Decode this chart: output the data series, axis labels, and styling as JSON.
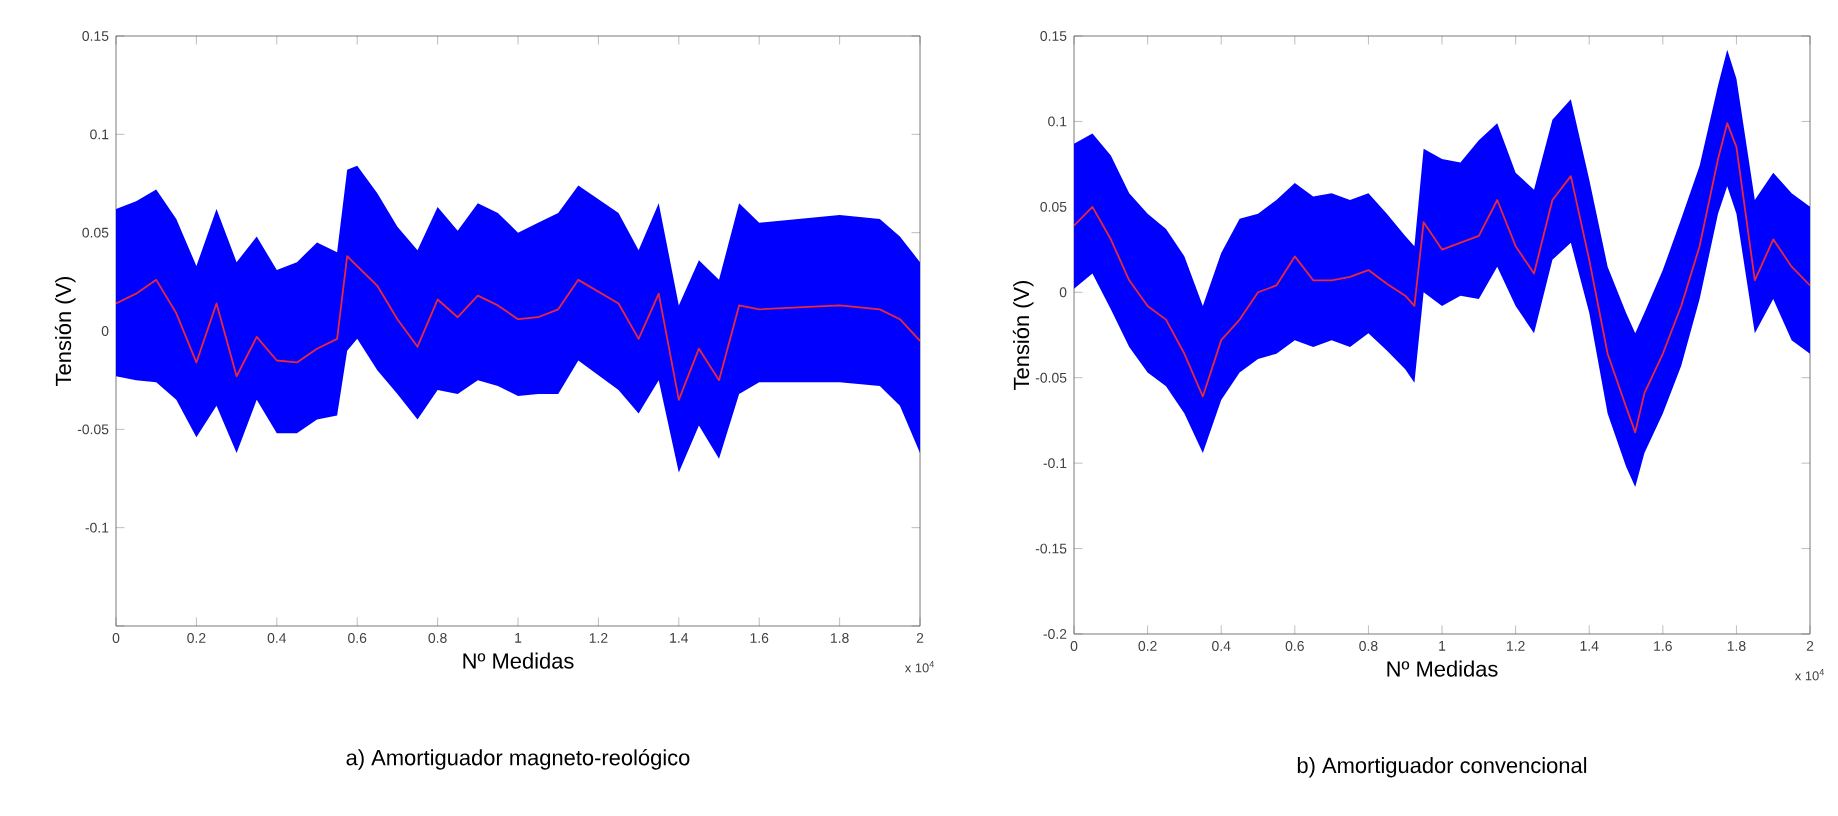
{
  "chart_data": [
    {
      "type": "line",
      "title": "a)  Amortiguador magneto-reológico",
      "xlabel": "Nº Medidas",
      "ylabel": "Tensión (V)",
      "annotations": [
        "x 10$^{4}$"
      ],
      "x": [
        0,
        0.05,
        0.1,
        0.15,
        0.2,
        0.25,
        0.3,
        0.35,
        0.4,
        0.45,
        0.5,
        0.55,
        0.575,
        0.6,
        0.65,
        0.7,
        0.75,
        0.8,
        0.85,
        0.9,
        0.95,
        1.0,
        1.05,
        1.1,
        1.15,
        1.25,
        1.3,
        1.35,
        1.4,
        1.45,
        1.5,
        1.55,
        1.6,
        1.8,
        1.9,
        1.95,
        2.0
      ],
      "xlim": [
        0,
        2
      ],
      "xticks": [
        0,
        0.2,
        0.4,
        0.6,
        0.8,
        1,
        1.2,
        1.4,
        1.6,
        1.8,
        2
      ],
      "ylim": [
        -0.15,
        0.15
      ],
      "yticks": [
        {
          "value": -0.15,
          "label": null
        },
        -0.1,
        -0.05,
        0,
        0.05,
        0.1,
        0.15
      ],
      "series": [
        {
          "color": "#e8283c",
          "colors": [
            "#0000ff",
            "#0000ff",
            "#0000ff",
            "#0000ff",
            "#0000ff",
            "#0000ff",
            "#0000ff",
            "#0000ff",
            "#0000ff",
            "#0000ff",
            "#0000ff",
            "#0000ff",
            "#0000ff",
            "#0000ff",
            "#0000ff",
            "#0000ff",
            "#0000ff",
            "#0000ff",
            "#0000ff",
            "#0000ff",
            "#0000ff",
            "#0000ff",
            "#0000ff",
            "#0000ff",
            "#0000ff",
            "#0000ff",
            "#0000ff",
            "#0000ff",
            "#0000ff",
            "#0000ff",
            "#0000ff",
            "#0000ff",
            "#0000ff",
            "#0000ff",
            "#0000ff",
            "#0000ff",
            "#0000ff"
          ],
          "values": [
            0.014,
            0.019,
            0.026,
            0.009,
            -0.016,
            0.014,
            -0.023,
            -0.003,
            -0.015,
            -0.016,
            -0.009,
            -0.004,
            0.038,
            0.033,
            0.023,
            0.006,
            -0.008,
            0.016,
            0.007,
            0.018,
            0.013,
            0.006,
            0.007,
            0.011,
            0.026,
            0.014,
            -0.004,
            0.019,
            -0.035,
            -0.009,
            -0.025,
            0.013,
            0.011,
            0.013,
            0.011,
            0.006,
            -0.005
          ],
          "upper": [
            0.062,
            0.066,
            0.072,
            0.057,
            0.033,
            0.062,
            0.035,
            0.048,
            0.031,
            0.035,
            0.045,
            0.04,
            0.082,
            0.084,
            0.07,
            0.053,
            0.041,
            0.063,
            0.051,
            0.065,
            0.06,
            0.05,
            0.055,
            0.06,
            0.074,
            0.06,
            0.041,
            0.065,
            0.013,
            0.036,
            0.026,
            0.065,
            0.055,
            0.059,
            0.057,
            0.048,
            0.035
          ],
          "lower": [
            -0.023,
            -0.025,
            -0.026,
            -0.035,
            -0.054,
            -0.038,
            -0.062,
            -0.035,
            -0.052,
            -0.052,
            -0.045,
            -0.043,
            -0.01,
            -0.004,
            -0.02,
            -0.032,
            -0.045,
            -0.03,
            -0.032,
            -0.025,
            -0.028,
            -0.033,
            -0.032,
            -0.032,
            -0.015,
            -0.03,
            -0.042,
            -0.025,
            -0.072,
            -0.048,
            -0.065,
            -0.032,
            -0.026,
            -0.026,
            -0.028,
            -0.038,
            -0.062
          ]
        }
      ]
    },
    {
      "type": "line",
      "title": "b)  Amortiguador convencional",
      "xlabel": "Nº Medidas",
      "ylabel": "Tensión (V)",
      "annotations": [
        "x 10$^{4}$"
      ],
      "x": [
        0,
        0.05,
        0.1,
        0.15,
        0.2,
        0.25,
        0.3,
        0.35,
        0.4,
        0.45,
        0.5,
        0.55,
        0.6,
        0.65,
        0.7,
        0.75,
        0.8,
        0.85,
        0.9,
        0.925,
        0.95,
        1.0,
        1.05,
        1.1,
        1.15,
        1.2,
        1.25,
        1.3,
        1.35,
        1.4,
        1.45,
        1.5,
        1.525,
        1.55,
        1.6,
        1.65,
        1.7,
        1.75,
        1.775,
        1.8,
        1.85,
        1.9,
        1.95,
        2.0
      ],
      "xlim": [
        0,
        2
      ],
      "xticks": [
        0,
        0.2,
        0.4,
        0.6,
        0.8,
        1,
        1.2,
        1.4,
        1.6,
        1.8,
        2
      ],
      "ylim": [
        -0.2,
        0.15
      ],
      "yticks": [
        -0.2,
        -0.15,
        -0.1,
        -0.05,
        0,
        0.05,
        0.1,
        0.15
      ],
      "series": [
        {
          "color": "#e8283c",
          "colors": [
            "#0000ff",
            "#0000ff",
            "#0000ff",
            "#0000ff",
            "#0000ff",
            "#0000ff",
            "#0000ff",
            "#0000ff",
            "#0000ff",
            "#0000ff",
            "#0000ff",
            "#0000ff",
            "#0000ff",
            "#0000ff",
            "#0000ff",
            "#0000ff",
            "#0000ff",
            "#0000ff",
            "#0000ff",
            "#0000ff",
            "#0000ff",
            "#0000ff",
            "#0000ff",
            "#0000ff",
            "#0000ff",
            "#0000ff",
            "#0000ff",
            "#0000ff",
            "#0000ff",
            "#0000ff",
            "#0000ff",
            "#0000ff",
            "#0000ff",
            "#0000ff",
            "#0000ff",
            "#0000ff",
            "#0000ff",
            "#0000ff",
            "#0000ff",
            "#0000ff",
            "#0000ff",
            "#0000ff",
            "#0000ff",
            "#0000ff"
          ],
          "values": [
            0.039,
            0.05,
            0.031,
            0.007,
            -0.008,
            -0.016,
            -0.036,
            -0.061,
            -0.028,
            -0.016,
            0.0,
            0.004,
            0.021,
            0.007,
            0.007,
            0.009,
            0.013,
            0.005,
            -0.002,
            -0.008,
            0.041,
            0.025,
            0.029,
            0.033,
            0.054,
            0.027,
            0.011,
            0.054,
            0.068,
            0.019,
            -0.036,
            -0.067,
            -0.082,
            -0.059,
            -0.036,
            -0.008,
            0.027,
            0.078,
            0.099,
            0.085,
            0.007,
            0.031,
            0.015,
            0.004
          ],
          "upper": [
            0.087,
            0.093,
            0.08,
            0.058,
            0.046,
            0.037,
            0.021,
            -0.008,
            0.023,
            0.043,
            0.046,
            0.054,
            0.064,
            0.056,
            0.058,
            0.054,
            0.058,
            0.046,
            0.033,
            0.027,
            0.084,
            0.078,
            0.076,
            0.089,
            0.099,
            0.07,
            0.06,
            0.101,
            0.113,
            0.066,
            0.015,
            -0.012,
            -0.024,
            -0.012,
            0.013,
            0.043,
            0.074,
            0.121,
            0.142,
            0.125,
            0.054,
            0.07,
            0.058,
            0.05
          ],
          "lower": [
            0.002,
            0.011,
            -0.01,
            -0.032,
            -0.047,
            -0.055,
            -0.071,
            -0.094,
            -0.063,
            -0.047,
            -0.039,
            -0.036,
            -0.028,
            -0.032,
            -0.028,
            -0.032,
            -0.024,
            -0.034,
            -0.045,
            -0.053,
            0.0,
            -0.008,
            -0.002,
            -0.004,
            0.015,
            -0.008,
            -0.024,
            0.019,
            0.029,
            -0.012,
            -0.071,
            -0.102,
            -0.114,
            -0.094,
            -0.071,
            -0.043,
            -0.004,
            0.046,
            0.062,
            0.046,
            -0.024,
            -0.004,
            -0.028,
            -0.036
          ]
        }
      ]
    }
  ]
}
